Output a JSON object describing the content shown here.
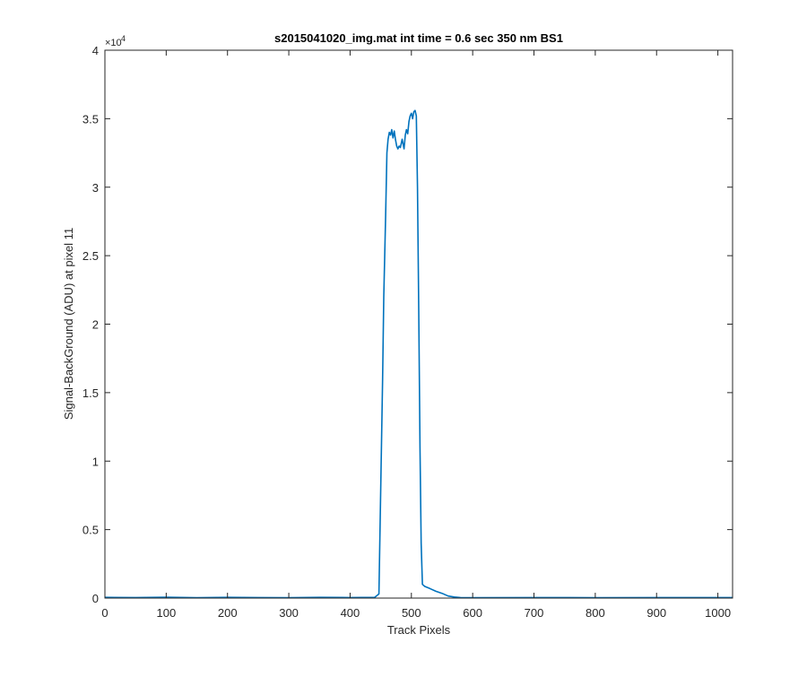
{
  "chart_data": {
    "type": "line",
    "title": "s2015041020_img.mat int time = 0.6 sec  350 nm BS1",
    "xlabel": "Track Pixels",
    "ylabel": "Signal-BackGround (ADU) at pixel 11",
    "xlim": [
      0,
      1024
    ],
    "ylim": [
      0,
      40000
    ],
    "xticks": [
      0,
      100,
      200,
      300,
      400,
      500,
      600,
      700,
      800,
      900,
      1000
    ],
    "yticks": [
      0,
      5000,
      10000,
      15000,
      20000,
      25000,
      30000,
      35000,
      40000
    ],
    "ytick_labels": [
      "0",
      "0.5",
      "1",
      "1.5",
      "2",
      "2.5",
      "3",
      "3.5",
      "4"
    ],
    "y_exponent_base": "×10",
    "y_exponent_power": "4",
    "grid": false,
    "line_color": "#0072BD",
    "series": [
      {
        "x": [
          0,
          50,
          100,
          150,
          200,
          250,
          300,
          350,
          400,
          440,
          447,
          450,
          453,
          455,
          458,
          460,
          462,
          464,
          466,
          468,
          470,
          472,
          474,
          476,
          478,
          480,
          482,
          485,
          488,
          490,
          492,
          494,
          496,
          498,
          500,
          502,
          504,
          506,
          508,
          510,
          512,
          514,
          516,
          518,
          522,
          530,
          540,
          550,
          560,
          570,
          580,
          600,
          700,
          800,
          900,
          1024
        ],
        "y": [
          50,
          40,
          60,
          30,
          50,
          40,
          30,
          50,
          40,
          50,
          300,
          8000,
          16000,
          22000,
          28000,
          32500,
          33500,
          34000,
          33800,
          34200,
          33600,
          34100,
          33500,
          33000,
          32800,
          33000,
          32900,
          33500,
          32800,
          33800,
          34200,
          33900,
          34800,
          35200,
          35400,
          35000,
          35500,
          35600,
          35200,
          30000,
          21000,
          11000,
          4000,
          1000,
          850,
          700,
          500,
          350,
          150,
          80,
          40,
          30,
          40,
          30,
          40,
          40
        ]
      }
    ]
  }
}
